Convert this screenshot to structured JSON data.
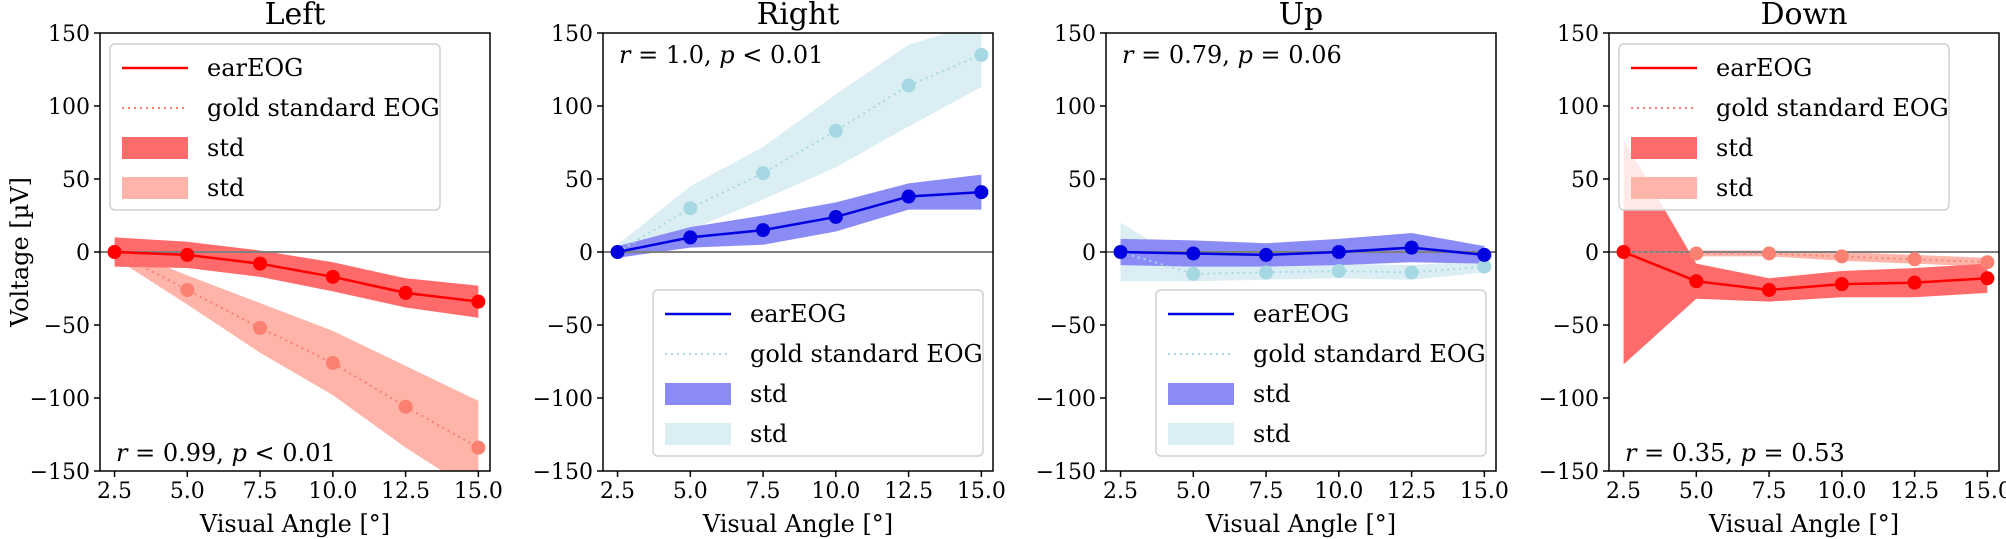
{
  "chart_data": [
    {
      "type": "line",
      "title": "Left",
      "xlabel": "Visual Angle [°]",
      "ylabel": "Voltage [µV]",
      "x": [
        2.5,
        5.0,
        7.5,
        10.0,
        12.5,
        15.0
      ],
      "xticks": [
        "2.5",
        "5.0",
        "7.5",
        "10.0",
        "12.5",
        "15.0"
      ],
      "ylim": [
        -150,
        150
      ],
      "yticks": [
        "150",
        "100",
        "50",
        "0",
        "−50",
        "−100",
        "−150"
      ],
      "colors": {
        "ear": "#ff0000",
        "ear_std": "#ff6b6b",
        "gold": "#fa8072",
        "gold_std": "#ffb4a9"
      },
      "series": [
        {
          "name": "earEOG",
          "values": [
            0,
            -2,
            -8,
            -17,
            -28,
            -34
          ],
          "std": [
            10,
            9,
            9,
            10,
            10,
            11
          ]
        },
        {
          "name": "gold standard EOG",
          "values": [
            0,
            -26,
            -52,
            -76,
            -106,
            -134
          ],
          "std": [
            4,
            10,
            17,
            22,
            28,
            32
          ]
        }
      ],
      "legend_labels": [
        "earEOG",
        "gold standard EOG",
        "std",
        "std"
      ],
      "legend_location": "upper-left",
      "annotation": "r = 0.99, p < 0.01",
      "annotation_location": "bottom-left"
    },
    {
      "type": "line",
      "title": "Right",
      "xlabel": "Visual Angle [°]",
      "ylabel": "",
      "x": [
        2.5,
        5.0,
        7.5,
        10.0,
        12.5,
        15.0
      ],
      "xticks": [
        "2.5",
        "5.0",
        "7.5",
        "10.0",
        "12.5",
        "15.0"
      ],
      "ylim": [
        -150,
        150
      ],
      "yticks": [
        "150",
        "100",
        "50",
        "0",
        "−50",
        "−100",
        "−150"
      ],
      "colors": {
        "ear": "#0000e0",
        "ear_std": "#8b8bf5",
        "gold": "#a6d8e3",
        "gold_std": "#dbeef4"
      },
      "series": [
        {
          "name": "earEOG",
          "values": [
            0,
            10,
            15,
            24,
            38,
            41
          ],
          "std": [
            4,
            7,
            10,
            10,
            9,
            12
          ]
        },
        {
          "name": "gold standard EOG",
          "values": [
            0,
            30,
            54,
            83,
            114,
            135
          ],
          "std": [
            5,
            15,
            18,
            25,
            28,
            22
          ]
        }
      ],
      "legend_labels": [
        "earEOG",
        "gold standard EOG",
        "std",
        "std"
      ],
      "legend_location": "lower-right",
      "annotation": "r = 1.0, p < 0.01",
      "annotation_location": "top-left"
    },
    {
      "type": "line",
      "title": "Up",
      "xlabel": "Visual Angle [°]",
      "ylabel": "",
      "x": [
        2.5,
        5.0,
        7.5,
        10.0,
        12.5,
        15.0
      ],
      "xticks": [
        "2.5",
        "5.0",
        "7.5",
        "10.0",
        "12.5",
        "15.0"
      ],
      "ylim": [
        -150,
        150
      ],
      "yticks": [
        "150",
        "100",
        "50",
        "0",
        "−50",
        "−100",
        "−150"
      ],
      "colors": {
        "ear": "#0000e0",
        "ear_std": "#8b8bf5",
        "gold": "#a6d8e3",
        "gold_std": "#dbeef4"
      },
      "series": [
        {
          "name": "earEOG",
          "values": [
            0,
            -1,
            -2,
            0,
            3,
            -2
          ],
          "std": [
            9,
            9,
            8,
            9,
            10,
            6
          ]
        },
        {
          "name": "gold standard EOG",
          "values": [
            0,
            -15,
            -14,
            -13,
            -14,
            -10
          ],
          "std": [
            20,
            5,
            5,
            5,
            5,
            4
          ]
        }
      ],
      "legend_labels": [
        "earEOG",
        "gold standard EOG",
        "std",
        "std"
      ],
      "legend_location": "lower-right",
      "annotation": "r = 0.79, p = 0.06",
      "annotation_location": "top-left"
    },
    {
      "type": "line",
      "title": "Down",
      "xlabel": "Visual Angle [°]",
      "ylabel": "",
      "x": [
        2.5,
        5.0,
        7.5,
        10.0,
        12.5,
        15.0
      ],
      "xticks": [
        "2.5",
        "5.0",
        "7.5",
        "10.0",
        "12.5",
        "15.0"
      ],
      "ylim": [
        -150,
        150
      ],
      "yticks": [
        "150",
        "100",
        "50",
        "0",
        "−50",
        "−100",
        "−150"
      ],
      "colors": {
        "ear": "#ff0000",
        "ear_std": "#ff6b6b",
        "gold": "#fa8072",
        "gold_std": "#ffb4a9"
      },
      "series": [
        {
          "name": "earEOG",
          "values": [
            0,
            -20,
            -26,
            -22,
            -21,
            -18
          ],
          "std": [
            77,
            12,
            8,
            9,
            10,
            10
          ]
        },
        {
          "name": "gold standard EOG",
          "values": [
            0,
            -1,
            -1,
            -3,
            -5,
            -7
          ],
          "std": [
            2,
            2,
            2,
            3,
            3,
            3
          ]
        }
      ],
      "legend_labels": [
        "earEOG",
        "gold standard EOG",
        "std",
        "std"
      ],
      "legend_location": "upper-left",
      "annotation": "r = 0.35, p = 0.53",
      "annotation_location": "bottom-left"
    }
  ]
}
